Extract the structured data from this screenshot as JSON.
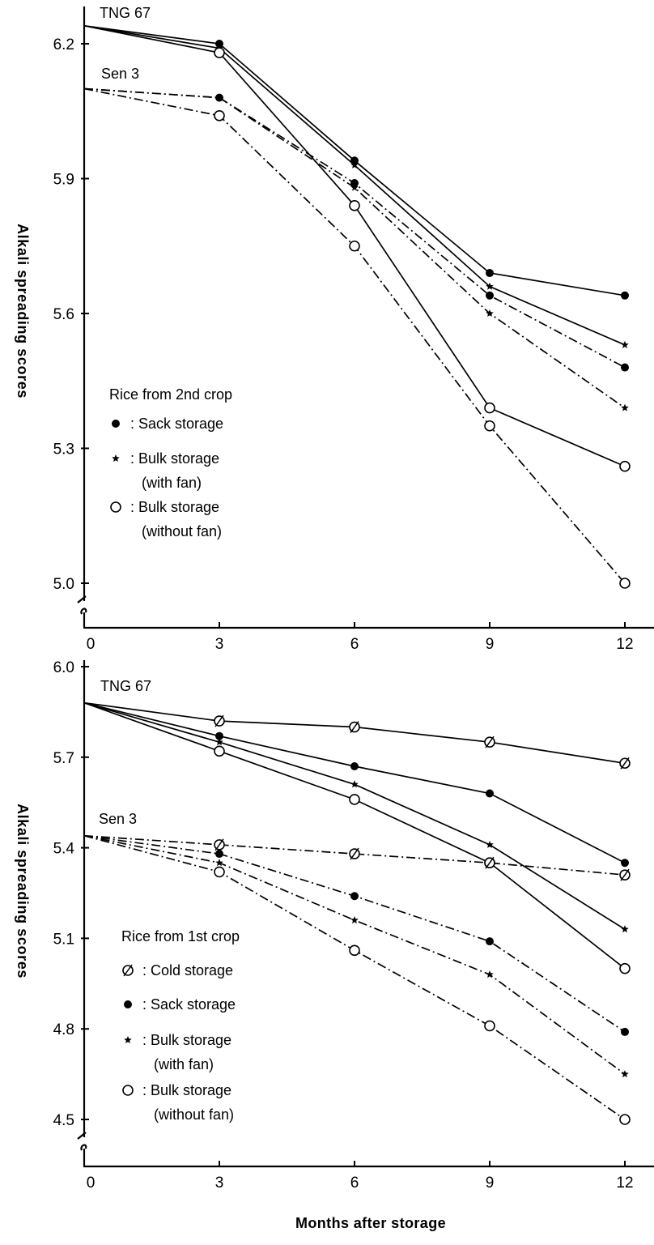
{
  "chart_data": [
    {
      "type": "line",
      "panel": "top",
      "ylabel": "Alkali spreading scores",
      "xlabel": "",
      "x": [
        0,
        3,
        6,
        9,
        12
      ],
      "x_tick_labels": [
        "0",
        "3",
        "6",
        "9",
        "12"
      ],
      "y_ticks": [
        5.0,
        5.3,
        5.6,
        5.9,
        6.2
      ],
      "y_tick_labels": [
        "5.0",
        "5.3",
        "5.6",
        "5.9",
        "6.2"
      ],
      "ylim": [
        4.9,
        6.32
      ],
      "axis_break": true,
      "legend": {
        "title": "Rice from 2nd crop",
        "entries": [
          {
            "marker_glyph": "●",
            "lines": [
              ": Sack storage"
            ]
          },
          {
            "marker_glyph": "★",
            "lines": [
              ": Bulk storage",
              "(with fan)"
            ]
          },
          {
            "marker_glyph": "○",
            "lines": [
              ": Bulk storage",
              "(without fan)"
            ]
          }
        ]
      },
      "variety_labels": [
        {
          "text": "TNG 67",
          "x": 0,
          "y": 6.24
        },
        {
          "text": "Sen 3",
          "x": 0,
          "y": 6.1
        }
      ],
      "series": [
        {
          "variety": "TNG 67",
          "storage": "Sack storage",
          "marker": "filled-circle",
          "line": "solid",
          "values": [
            6.24,
            6.2,
            5.94,
            5.69,
            5.64
          ]
        },
        {
          "variety": "TNG 67",
          "storage": "Bulk storage (with fan)",
          "marker": "star",
          "line": "solid",
          "values": [
            6.24,
            6.19,
            5.93,
            5.66,
            5.53
          ]
        },
        {
          "variety": "TNG 67",
          "storage": "Bulk storage (without fan)",
          "marker": "open-circle",
          "line": "solid",
          "values": [
            6.24,
            6.18,
            5.84,
            5.39,
            5.26
          ]
        },
        {
          "variety": "Sen 3",
          "storage": "Sack storage",
          "marker": "filled-circle",
          "line": "dash-dot",
          "values": [
            6.1,
            6.08,
            5.89,
            5.64,
            5.48
          ]
        },
        {
          "variety": "Sen 3",
          "storage": "Bulk storage (with fan)",
          "marker": "star",
          "line": "dash-dot",
          "values": [
            6.1,
            6.08,
            5.88,
            5.6,
            5.39
          ]
        },
        {
          "variety": "Sen 3",
          "storage": "Bulk storage (without fan)",
          "marker": "open-circle",
          "line": "dash-dot",
          "values": [
            6.1,
            6.04,
            5.75,
            5.35,
            5.0
          ]
        }
      ]
    },
    {
      "type": "line",
      "panel": "bottom",
      "ylabel": "Alkali spreading scores",
      "xlabel": "Months after storage",
      "x": [
        0,
        3,
        6,
        9,
        12
      ],
      "x_tick_labels": [
        "0",
        "3",
        "6",
        "9",
        "12"
      ],
      "y_ticks": [
        4.5,
        4.8,
        5.1,
        5.4,
        5.7,
        6.0
      ],
      "y_tick_labels": [
        "4.5",
        "4.8",
        "5.1",
        "5.4",
        "5.7",
        "6.0"
      ],
      "ylim": [
        4.4,
        6.05
      ],
      "axis_break": true,
      "legend": {
        "title": "Rice from 1st crop",
        "entries": [
          {
            "marker_glyph": "∅",
            "lines": [
              ": Cold storage"
            ]
          },
          {
            "marker_glyph": "●",
            "lines": [
              ": Sack storage"
            ]
          },
          {
            "marker_glyph": "★",
            "lines": [
              ": Bulk storage",
              "(with fan)"
            ]
          },
          {
            "marker_glyph": "○",
            "lines": [
              ": Bulk storage",
              "(without fan)"
            ]
          }
        ]
      },
      "variety_labels": [
        {
          "text": "TNG 67",
          "x": 0,
          "y": 5.88
        },
        {
          "text": "Sen 3",
          "x": 0,
          "y": 5.44
        }
      ],
      "series": [
        {
          "variety": "TNG 67",
          "storage": "Cold storage",
          "marker": "slashed-circle",
          "line": "solid",
          "values": [
            5.88,
            5.82,
            5.8,
            5.75,
            5.68
          ]
        },
        {
          "variety": "TNG 67",
          "storage": "Sack storage",
          "marker": "filled-circle",
          "line": "solid",
          "values": [
            5.88,
            5.77,
            5.67,
            5.58,
            5.35
          ]
        },
        {
          "variety": "TNG 67",
          "storage": "Bulk storage (with fan)",
          "marker": "star",
          "line": "solid",
          "values": [
            5.88,
            5.75,
            5.61,
            5.41,
            5.13
          ]
        },
        {
          "variety": "TNG 67",
          "storage": "Bulk storage (without fan)",
          "marker": "open-circle",
          "line": "solid",
          "values": [
            5.88,
            5.72,
            5.56,
            5.35,
            5.0
          ]
        },
        {
          "variety": "Sen 3",
          "storage": "Cold storage",
          "marker": "slashed-circle",
          "line": "dash-dot",
          "values": [
            5.44,
            5.41,
            5.38,
            5.35,
            5.31
          ]
        },
        {
          "variety": "Sen 3",
          "storage": "Sack storage",
          "marker": "filled-circle",
          "line": "dash-dot",
          "values": [
            5.44,
            5.38,
            5.24,
            5.09,
            4.79
          ]
        },
        {
          "variety": "Sen 3",
          "storage": "Bulk storage (with fan)",
          "marker": "star",
          "line": "dash-dot",
          "values": [
            5.44,
            5.35,
            5.16,
            4.98,
            4.65
          ]
        },
        {
          "variety": "Sen 3",
          "storage": "Bulk storage (without fan)",
          "marker": "open-circle",
          "line": "dash-dot",
          "values": [
            5.44,
            5.32,
            5.06,
            4.81,
            4.5
          ]
        }
      ]
    }
  ]
}
